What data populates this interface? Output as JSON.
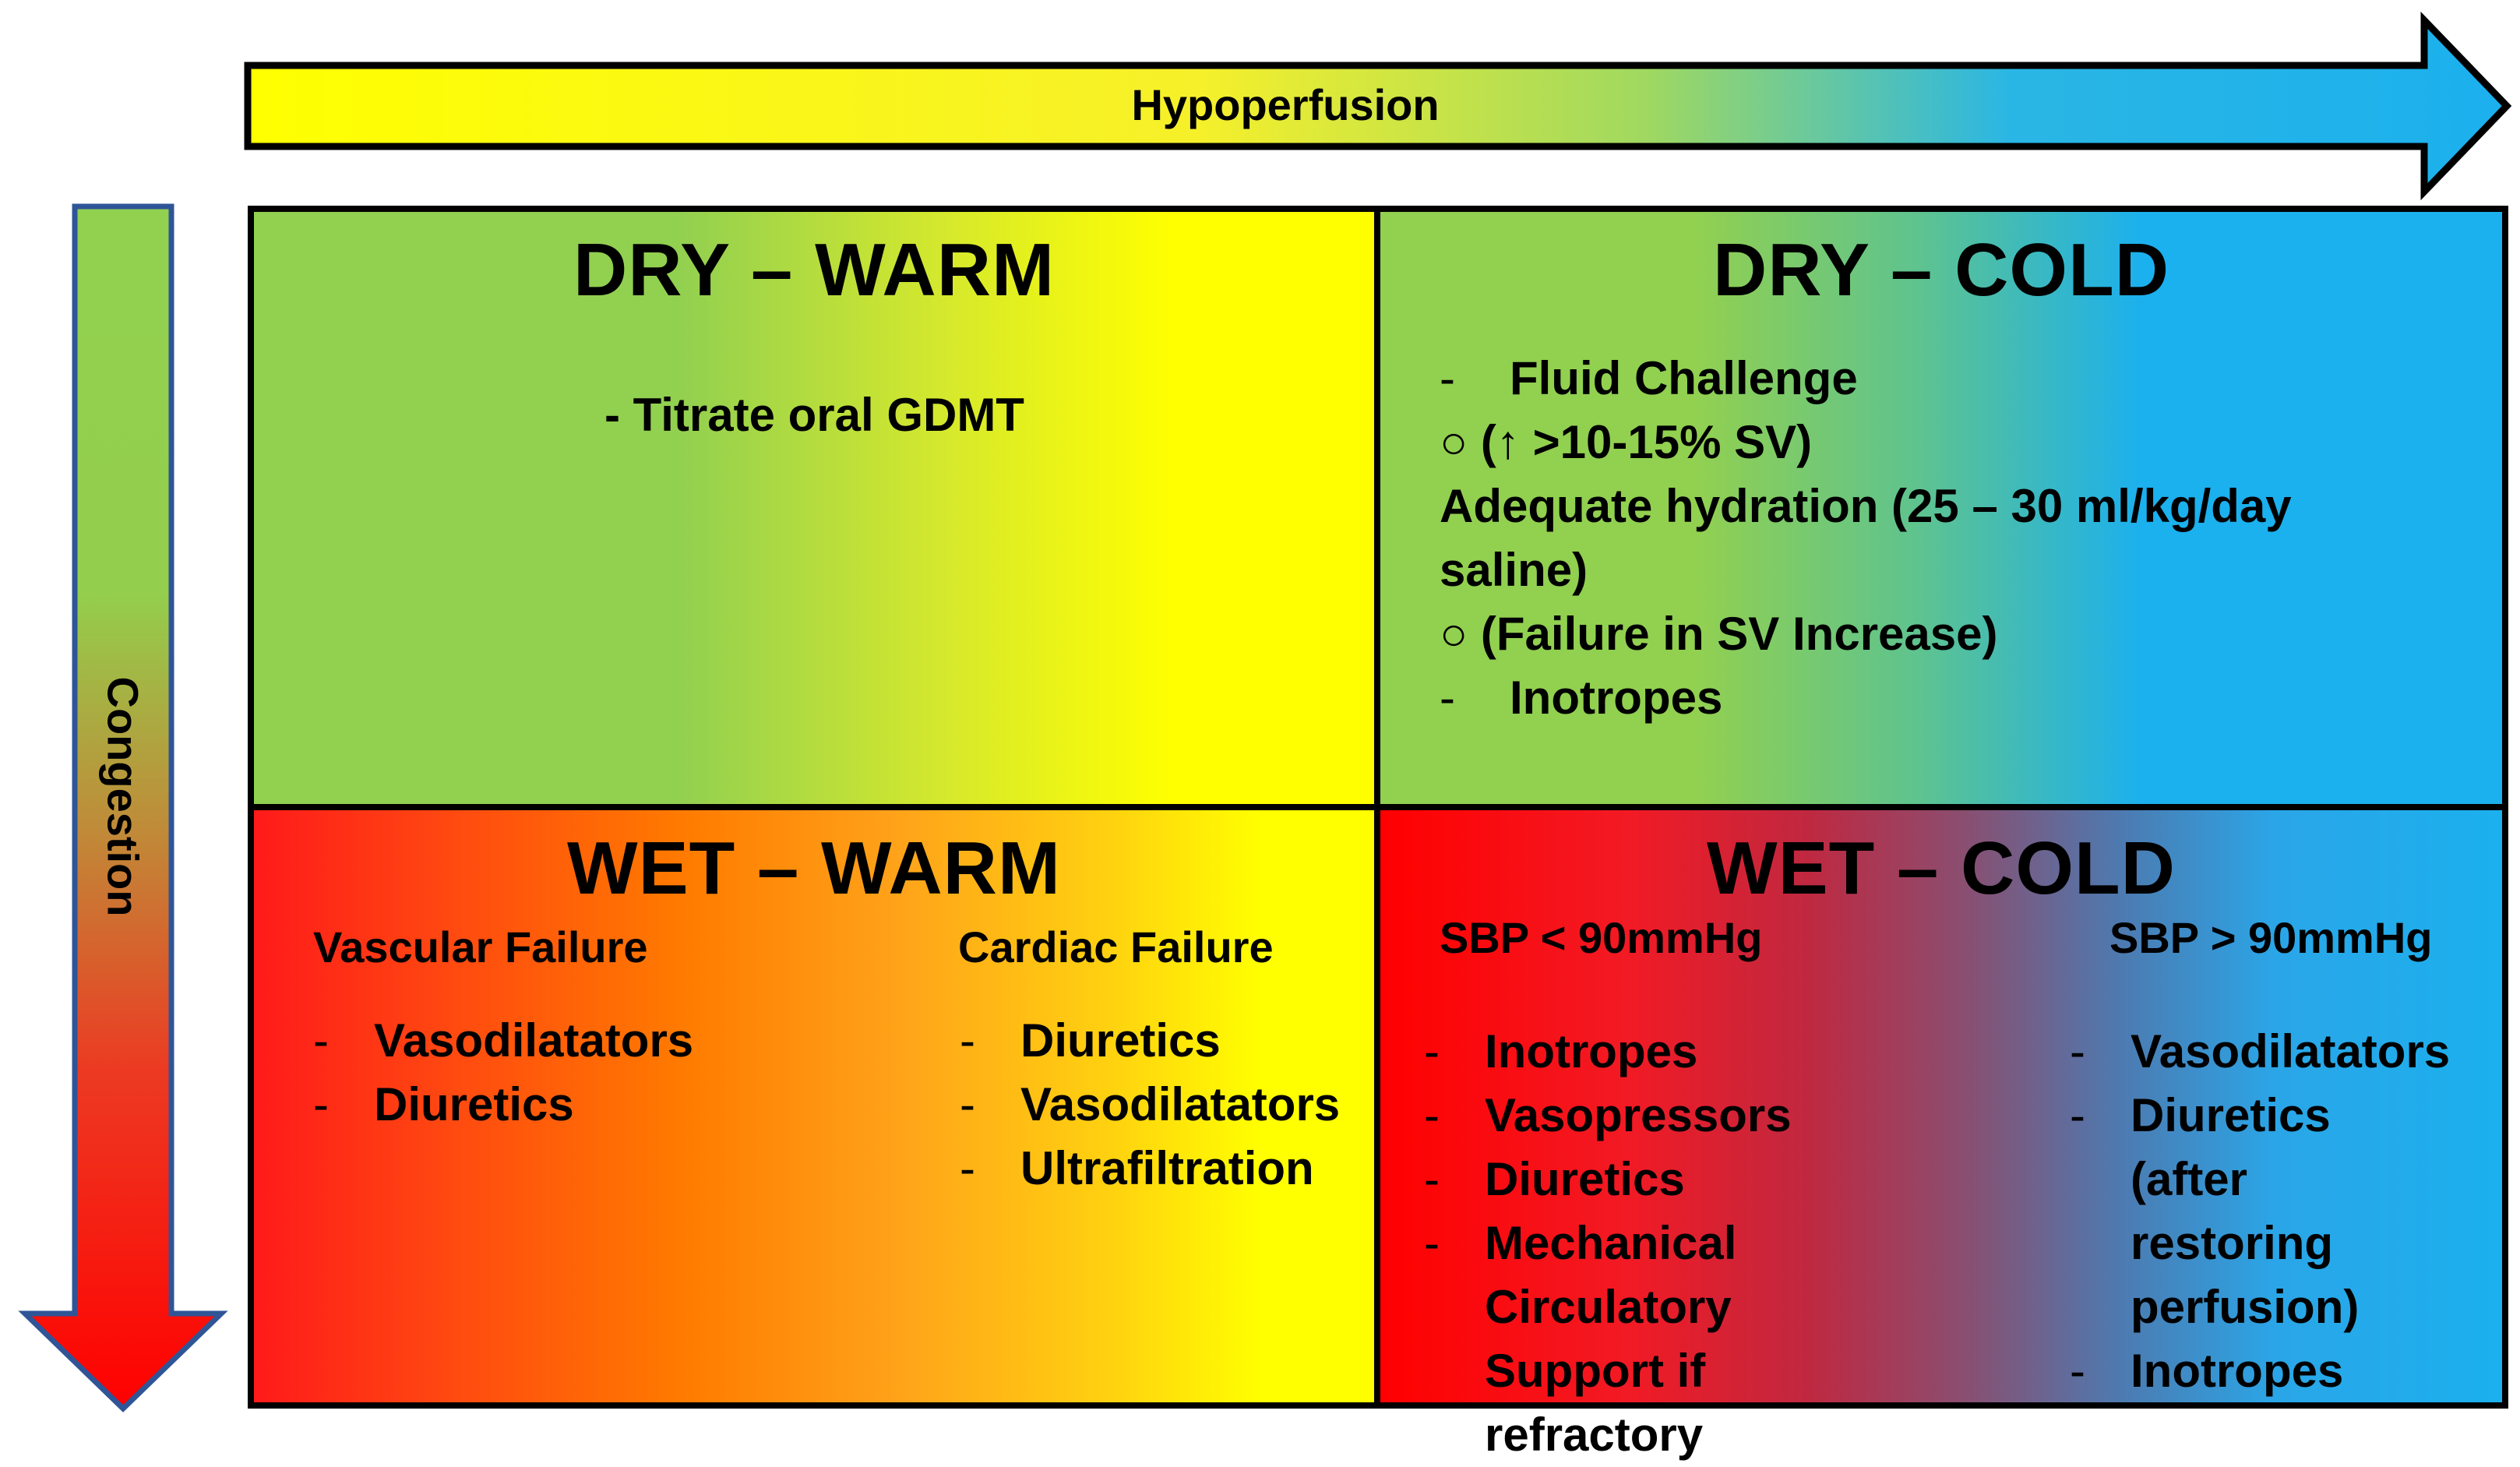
{
  "arrows": {
    "horizontal_label": "Hypoperfusion",
    "vertical_label": "Congestion"
  },
  "colors": {
    "green": "#92d050",
    "yellow": "#ffff00",
    "blue": "#1bb0ee",
    "red": "#ff0000",
    "orange": "#ff8000",
    "border": "#000000",
    "vertical_arrow_border": "#2f5597"
  },
  "quadrants": {
    "dry_warm": {
      "title": "DRY – WARM",
      "text": "- Titrate oral GDMT"
    },
    "dry_cold": {
      "title": "DRY – COLD",
      "lines": [
        {
          "bullet": "-",
          "text": "Fluid Challenge"
        },
        {
          "bullet": "○",
          "text": "(↑ >10-15% SV)"
        },
        {
          "bullet": "",
          "text": "Adequate hydration (25 – 30 ml/kg/day"
        },
        {
          "bullet": "",
          "text": "saline)"
        },
        {
          "bullet": "○",
          "text": "(Failure in SV Increase)"
        },
        {
          "bullet": "-",
          "text": "Inotropes"
        }
      ]
    },
    "wet_warm": {
      "title": "WET – WARM",
      "left_heading": "Vascular Failure",
      "left_items": [
        "Vasodilatators",
        "Diuretics"
      ],
      "right_heading": "Cardiac Failure",
      "right_items": [
        "Diuretics",
        "Vasodilatators",
        "Ultrafiltration"
      ]
    },
    "wet_cold": {
      "title": "WET – COLD",
      "left_heading": "SBP < 90mmHg",
      "left_items": [
        "Inotropes",
        "Vasopressors",
        "Diuretics",
        "Mechanical Circulatory Support if refractory"
      ],
      "right_heading": "SBP > 90mmHg",
      "right_items": [
        "Vasodilatators",
        "Diuretics (after restoring perfusion)",
        "Inotropes"
      ]
    }
  }
}
